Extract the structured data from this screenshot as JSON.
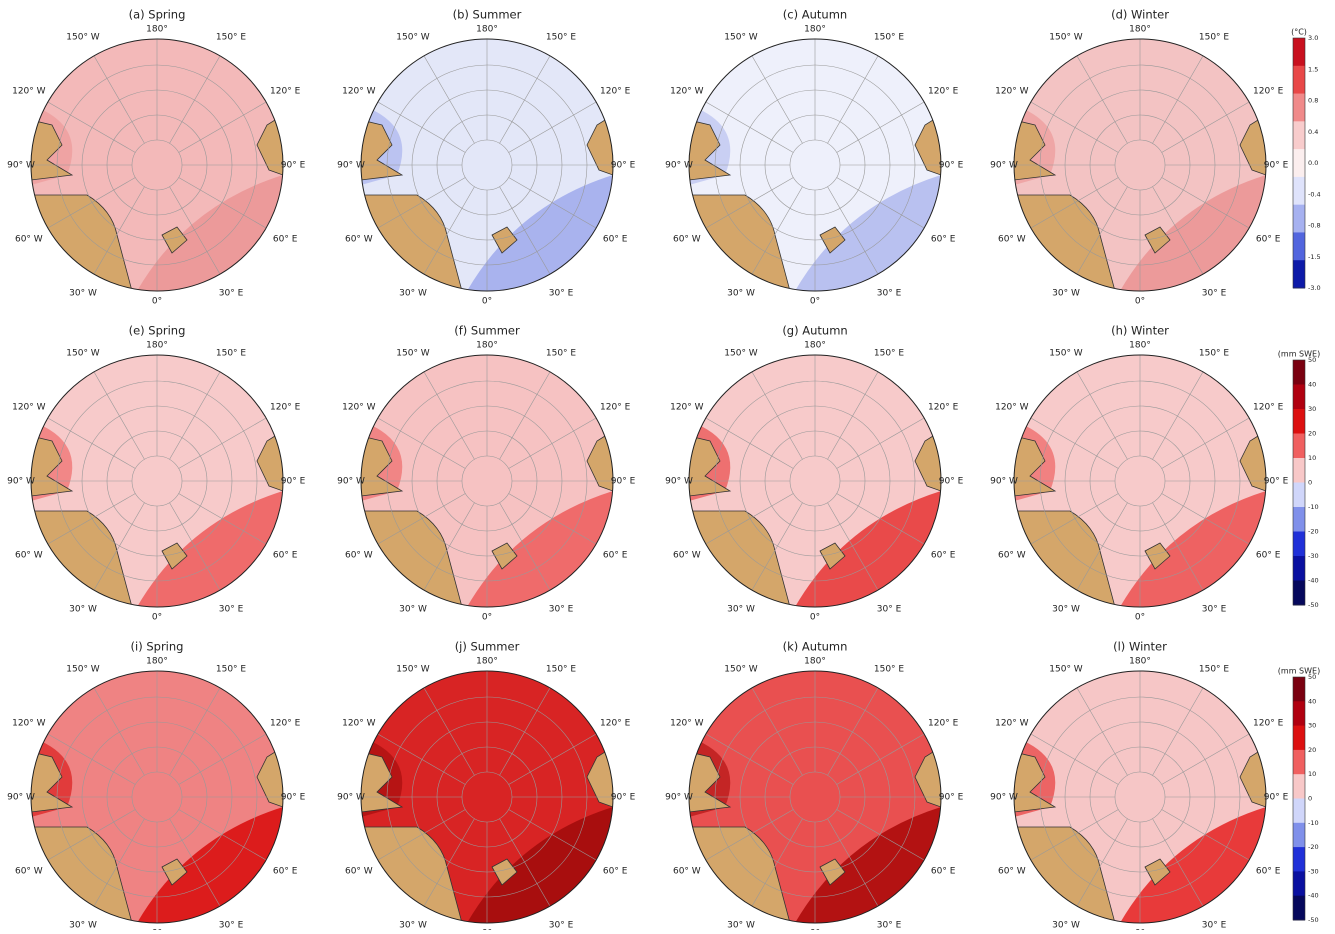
{
  "panels": [
    {
      "title": "(a) Spring",
      "color": "#f3b9b9",
      "accent": "#ec9a9a"
    },
    {
      "title": "(b) Summer",
      "color": "#e3e7f8",
      "accent": "#a9b3ee"
    },
    {
      "title": "(c) Autumn",
      "color": "#eef0fb",
      "accent": "#b9c1f0"
    },
    {
      "title": "(d) Winter",
      "color": "#f3c3c3",
      "accent": "#ec9a9a"
    },
    {
      "title": "(e) Spring",
      "color": "#f7caca",
      "accent": "#ef6b6b"
    },
    {
      "title": "(f) Summer",
      "color": "#f6c2c2",
      "accent": "#ef6b6b"
    },
    {
      "title": "(g) Autumn",
      "color": "#f7caca",
      "accent": "#e94a4a"
    },
    {
      "title": "(h) Winter",
      "color": "#f7caca",
      "accent": "#ee6262"
    },
    {
      "title": "(i) Spring",
      "color": "#ef8383",
      "accent": "#dc1c1c"
    },
    {
      "title": "(j) Summer",
      "color": "#d82424",
      "accent": "#a80e0e"
    },
    {
      "title": "(k) Autumn",
      "color": "#e95050",
      "accent": "#b31212"
    },
    {
      "title": "(l) Winter",
      "color": "#f6c6c6",
      "accent": "#e83a3a"
    }
  ],
  "lon_labels": [
    "0°",
    "30° E",
    "60° E",
    "90° E",
    "120° E",
    "150° E",
    "180°",
    "150° W",
    "120° W",
    "90° W",
    "60° W",
    "30° W"
  ],
  "colorbars": [
    {
      "unit": "(°C)",
      "ticks": [
        "3.0",
        "1.5",
        "0.8",
        "0.4",
        "0.0",
        "-0.4",
        "-0.8",
        "-1.5",
        "-3.0"
      ],
      "colors": [
        "#c8101e",
        "#e84848",
        "#f08a8a",
        "#f8cccc",
        "#fbeeee",
        "#dfe3fb",
        "#a6b1f0",
        "#5265de",
        "#0d1aa8"
      ]
    },
    {
      "unit": "(mm SWE)",
      "ticks": [
        "50",
        "40",
        "30",
        "20",
        "10",
        "0",
        "-10",
        "-20",
        "-30",
        "-40",
        " -50"
      ],
      "colors": [
        "#7a0010",
        "#b00010",
        "#dc1010",
        "#f06060",
        "#f8c8c8",
        "#d0d6fa",
        "#8090ea",
        "#2030d8",
        "#0a10a0",
        "#06085c"
      ]
    },
    {
      "unit": "(mm SWE)",
      "ticks": [
        "50",
        "40",
        "30",
        "20",
        "10",
        "0",
        "-10",
        "-20",
        "-30",
        "-40",
        "-50"
      ],
      "colors": [
        "#7a0010",
        "#b00010",
        "#dc1010",
        "#f06060",
        "#f8c8c8",
        "#d0d6fa",
        "#8090ea",
        "#2030d8",
        "#0a10a0",
        "#06085c"
      ]
    }
  ]
}
